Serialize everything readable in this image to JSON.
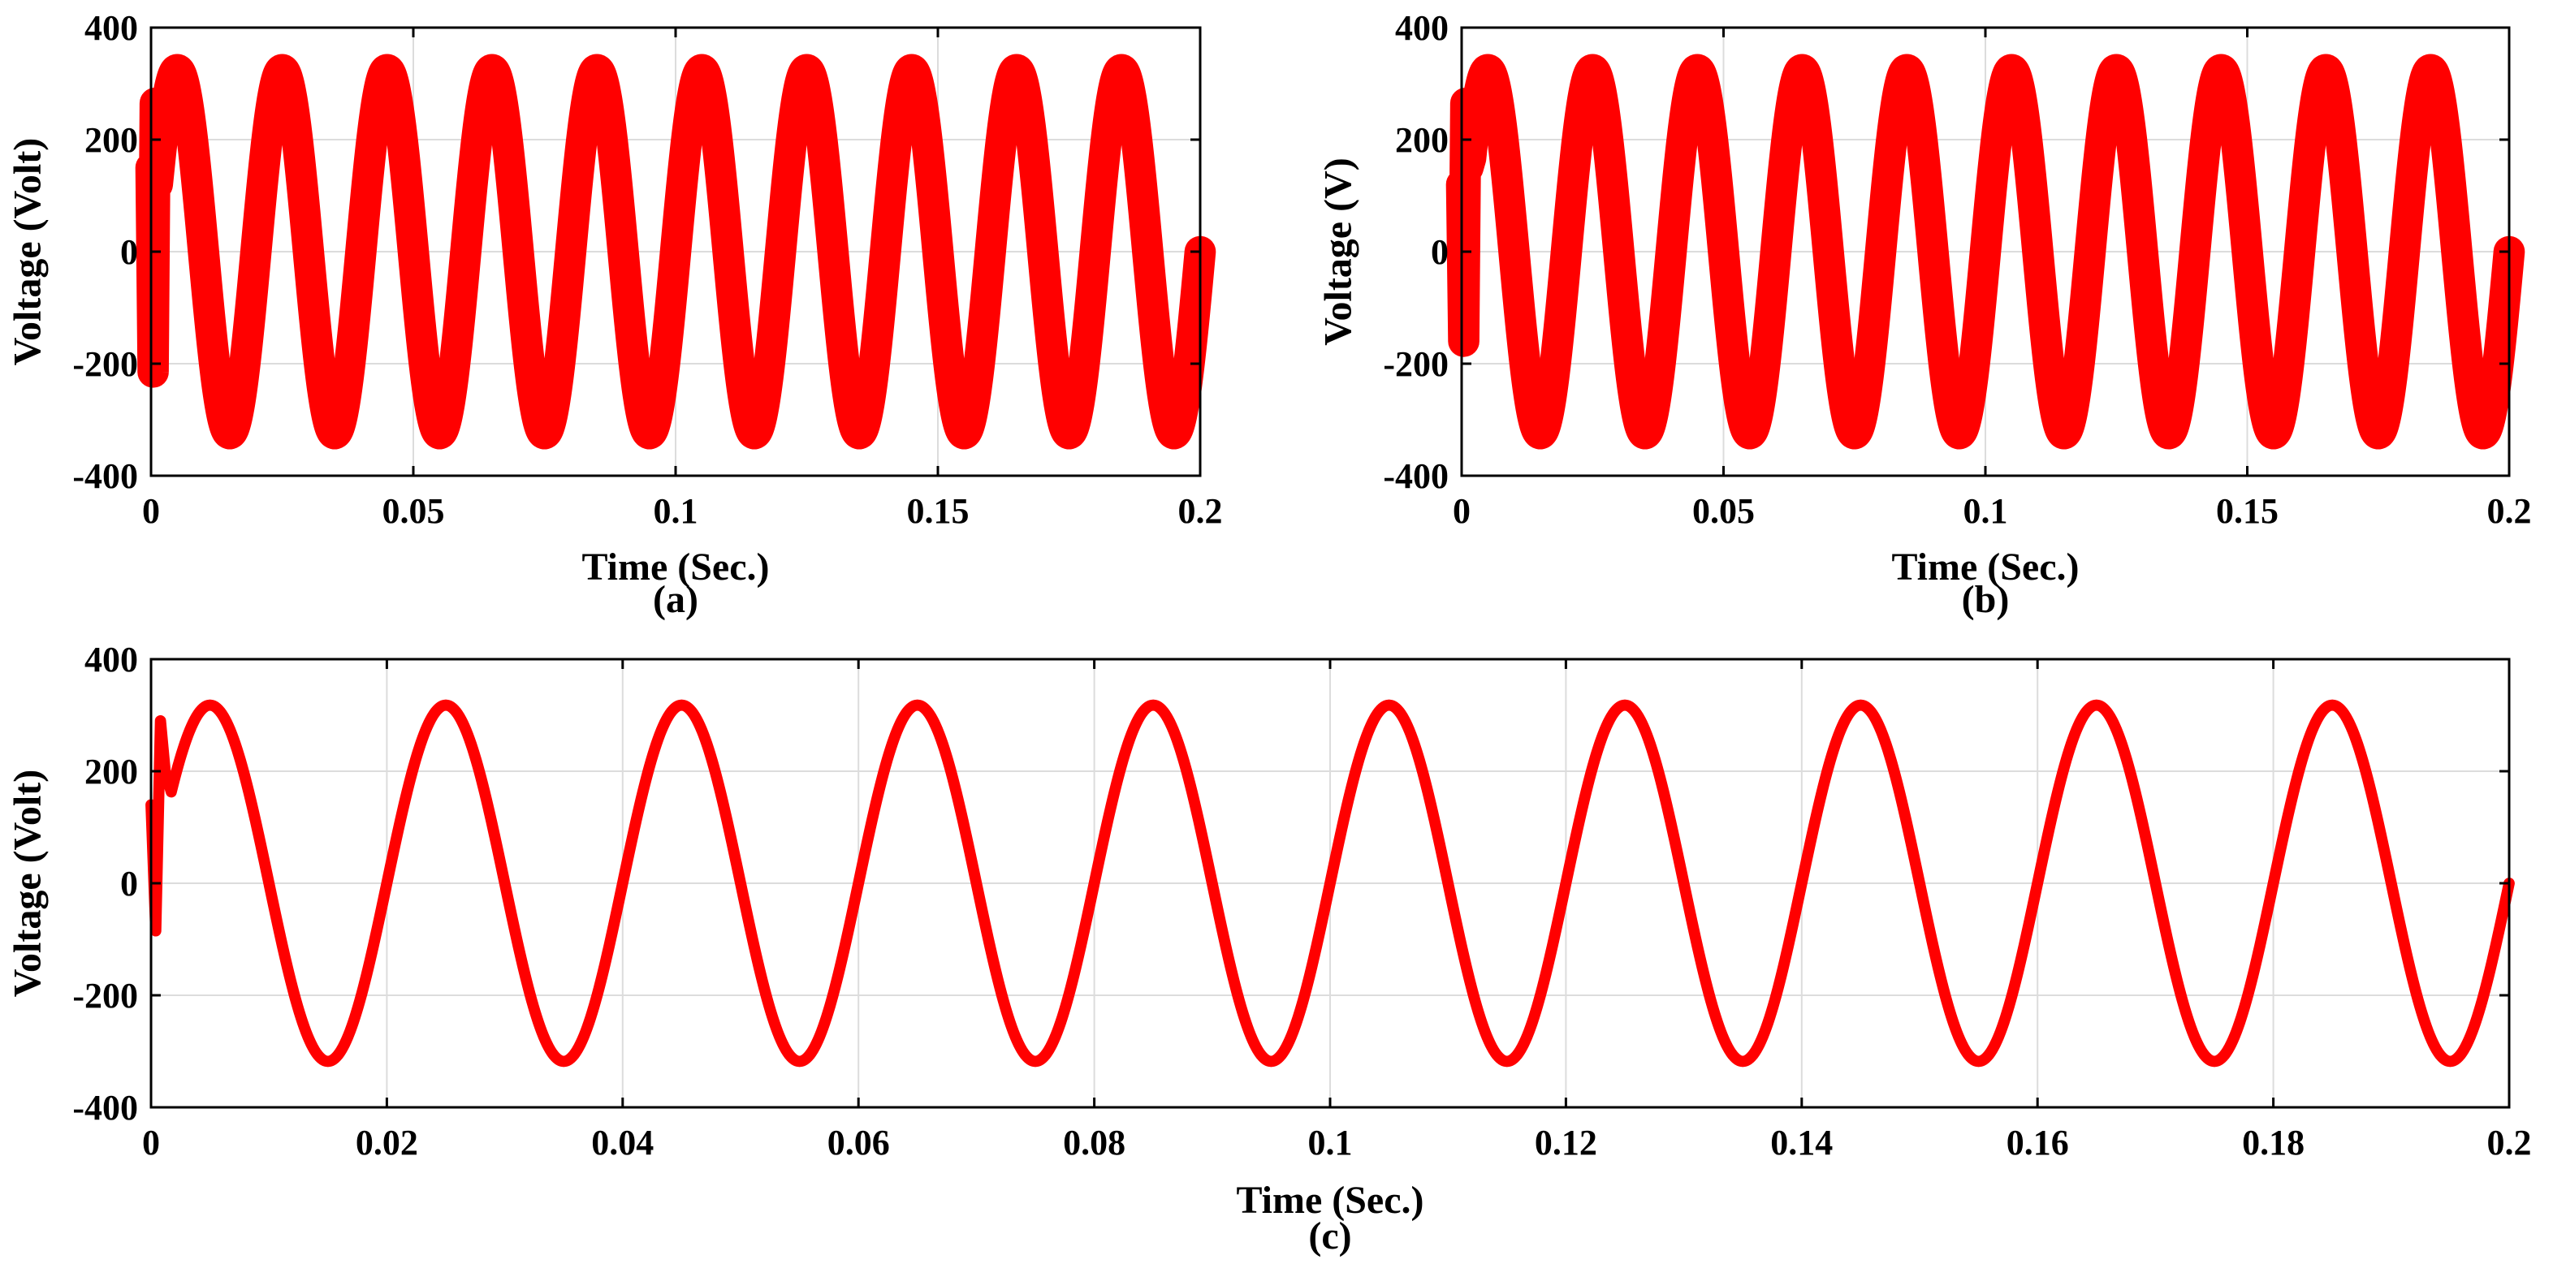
{
  "chart_data": [
    {
      "id": "a",
      "type": "line",
      "caption": "(a)",
      "title": "",
      "xlabel": "Time (Sec.)",
      "ylabel": "Voltage (Volt)",
      "xlim": [
        0,
        0.2
      ],
      "ylim": [
        -400,
        400
      ],
      "xticks": [
        0,
        0.05,
        0.1,
        0.15,
        0.2
      ],
      "xtick_labels": [
        "0",
        "0.05",
        "0.1",
        "0.15",
        "0.2"
      ],
      "yticks": [
        -400,
        -200,
        0,
        200,
        400
      ],
      "ytick_labels": [
        "-400",
        "-200",
        "0",
        "200",
        "400"
      ],
      "grid": true,
      "color": "#ff0000",
      "series": [
        {
          "name": "voltage",
          "waveform": "sine",
          "amplitude": 325,
          "frequency_hz": 50,
          "ripple": 28,
          "start_transient": [
            150,
            -215,
            265,
            120
          ],
          "x_start": 0,
          "x_end": 0.2
        }
      ]
    },
    {
      "id": "b",
      "type": "line",
      "caption": "(b)",
      "title": "",
      "xlabel": "Time (Sec.)",
      "ylabel": "Voltage (V)",
      "xlim": [
        0,
        0.2
      ],
      "ylim": [
        -400,
        400
      ],
      "xticks": [
        0,
        0.05,
        0.1,
        0.15,
        0.2
      ],
      "xtick_labels": [
        "0",
        "0.05",
        "0.1",
        "0.15",
        "0.2"
      ],
      "yticks": [
        -400,
        -200,
        0,
        200,
        400
      ],
      "ytick_labels": [
        "-400",
        "-200",
        "0",
        "200",
        "400"
      ],
      "grid": true,
      "color": "#ff0000",
      "series": [
        {
          "name": "voltage",
          "waveform": "sine",
          "amplitude": 325,
          "frequency_hz": 50,
          "ripple": 28,
          "start_transient": [
            120,
            -160,
            265,
            150
          ],
          "x_start": 0,
          "x_end": 0.2
        }
      ]
    },
    {
      "id": "c",
      "type": "line",
      "caption": "(c)",
      "title": "",
      "xlabel": "Time (Sec.)",
      "ylabel": "Voltage (Volt)",
      "xlim": [
        0,
        0.2
      ],
      "ylim": [
        -400,
        400
      ],
      "xticks": [
        0,
        0.02,
        0.04,
        0.06,
        0.08,
        0.1,
        0.12,
        0.14,
        0.16,
        0.18,
        0.2
      ],
      "xtick_labels": [
        "0",
        "0.02",
        "0.04",
        "0.06",
        "0.08",
        "0.1",
        "0.12",
        "0.14",
        "0.16",
        "0.18",
        "0.2"
      ],
      "yticks": [
        -400,
        -200,
        0,
        200,
        400
      ],
      "ytick_labels": [
        "-400",
        "-200",
        "0",
        "200",
        "400"
      ],
      "grid": true,
      "color": "#ff0000",
      "series": [
        {
          "name": "voltage",
          "waveform": "sine",
          "amplitude": 318,
          "frequency_hz": 50,
          "ripple": 10,
          "start_transient": [
            140,
            -85,
            290,
            200
          ],
          "x_start": 0,
          "x_end": 0.2
        }
      ]
    }
  ]
}
